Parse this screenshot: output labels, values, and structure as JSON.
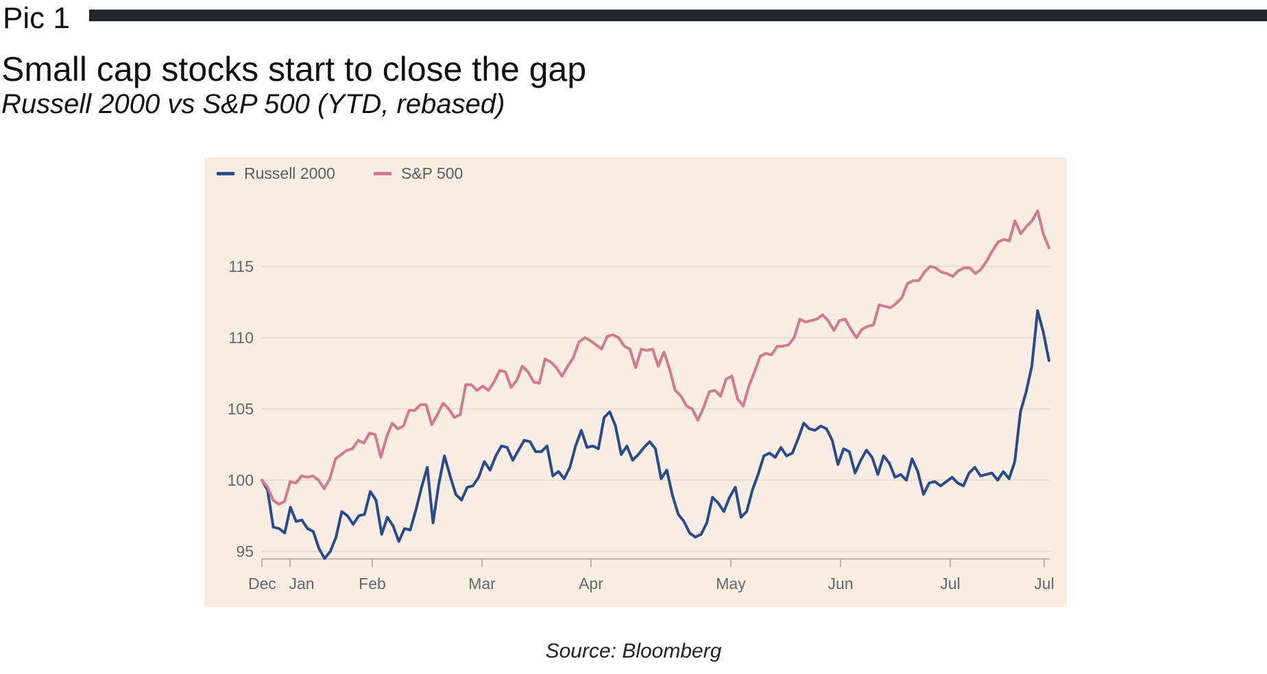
{
  "header": {
    "pic_label": "Pic 1",
    "title": "Small cap stocks start to close the gap",
    "subtitle": "Russell 2000 vs S&P 500 (YTD, rebased)"
  },
  "source": "Source: Bloomberg",
  "colors": {
    "russell": "#2a4a8c",
    "sp500": "#d17a8f",
    "panel_background": "#f8ede3",
    "gridline": "#e6dcd2"
  },
  "chart_data": {
    "type": "line",
    "title": "",
    "xlabel": "",
    "ylabel": "",
    "ylim": [
      94,
      122
    ],
    "yticks": [
      95,
      100,
      105,
      110,
      115
    ],
    "grid": "horizontal",
    "legend_position": "top-left",
    "x_tick_labels": [
      "Dec",
      "Jan",
      "Feb",
      "Mar",
      "Apr",
      "May",
      "Jun",
      "Jul",
      "Jul"
    ],
    "series": [
      {
        "name": "Russell 2000",
        "values": [
          100.0,
          99.3,
          96.7,
          96.6,
          96.3,
          98.1,
          97.1,
          97.2,
          96.6,
          96.4,
          95.2,
          94.5,
          95.0,
          96.0,
          97.8,
          97.5,
          96.9,
          97.5,
          97.6,
          99.2,
          98.6,
          96.2,
          97.4,
          96.8,
          95.7,
          96.6,
          96.5,
          97.9,
          99.5,
          100.9,
          97.0,
          99.7,
          101.7,
          100.3,
          99.0,
          98.6,
          99.5,
          99.6,
          100.2,
          101.3,
          100.7,
          101.7,
          102.4,
          102.3,
          101.4,
          102.1,
          102.8,
          102.7,
          102.0,
          102.0,
          102.4,
          100.3,
          100.6,
          100.1,
          100.9,
          102.4,
          103.5,
          102.3,
          102.4,
          102.2,
          104.4,
          104.8,
          103.8,
          101.8,
          102.4,
          101.4,
          101.8,
          102.3,
          102.7,
          102.2,
          100.1,
          100.7,
          98.9,
          97.6,
          97.1,
          96.3,
          96.0,
          96.2,
          97.0,
          98.8,
          98.4,
          97.8,
          98.8,
          99.5,
          97.4,
          97.8,
          99.3,
          100.4,
          101.7,
          101.9,
          101.6,
          102.3,
          101.7,
          101.9,
          102.9,
          104.0,
          103.6,
          103.5,
          103.8,
          103.6,
          102.8,
          101.1,
          102.2,
          102.0,
          100.5,
          101.4,
          102.1,
          101.6,
          100.4,
          101.7,
          101.2,
          100.2,
          100.4,
          100.0,
          101.5,
          100.6,
          99.0,
          99.8,
          99.9,
          99.6,
          99.9,
          100.2,
          99.8,
          99.6,
          100.5,
          100.9,
          100.3,
          100.4,
          100.5,
          100.0,
          100.6,
          100.1,
          101.3,
          104.8,
          106.2,
          108.0,
          111.9,
          110.4,
          108.4
        ]
      },
      {
        "name": "S&P 500",
        "values": [
          100.0,
          99.5,
          98.6,
          98.3,
          98.5,
          99.9,
          99.8,
          100.3,
          100.2,
          100.3,
          100.0,
          99.4,
          100.1,
          101.5,
          101.8,
          102.1,
          102.2,
          102.8,
          102.6,
          103.3,
          103.2,
          101.6,
          103.0,
          104.0,
          103.6,
          103.8,
          104.9,
          104.9,
          105.3,
          105.3,
          103.9,
          104.6,
          105.4,
          105.0,
          104.4,
          104.6,
          106.7,
          106.7,
          106.3,
          106.6,
          106.3,
          106.9,
          107.7,
          107.6,
          106.5,
          107.0,
          108.0,
          107.6,
          106.9,
          106.8,
          108.5,
          108.3,
          107.9,
          107.3,
          108.0,
          108.6,
          109.7,
          110.0,
          109.8,
          109.5,
          109.2,
          110.1,
          110.2,
          110.0,
          109.4,
          109.2,
          107.9,
          109.2,
          109.1,
          109.2,
          108.0,
          109.0,
          107.8,
          106.3,
          105.9,
          105.2,
          105.0,
          104.2,
          105.1,
          106.2,
          106.3,
          105.9,
          107.1,
          107.3,
          105.7,
          105.2,
          106.6,
          107.6,
          108.7,
          108.9,
          108.8,
          109.4,
          109.4,
          109.5,
          110.0,
          111.3,
          111.1,
          111.2,
          111.3,
          111.6,
          111.2,
          110.5,
          111.2,
          111.3,
          110.6,
          110.0,
          110.6,
          110.8,
          110.9,
          112.3,
          112.2,
          112.1,
          112.4,
          112.8,
          113.8,
          114.0,
          114.0,
          114.6,
          115.0,
          114.9,
          114.6,
          114.5,
          114.3,
          114.7,
          114.9,
          114.9,
          114.5,
          114.8,
          115.4,
          116.1,
          116.7,
          116.9,
          116.8,
          118.2,
          117.3,
          117.8,
          118.2,
          118.9,
          117.3,
          116.3
        ]
      }
    ]
  }
}
